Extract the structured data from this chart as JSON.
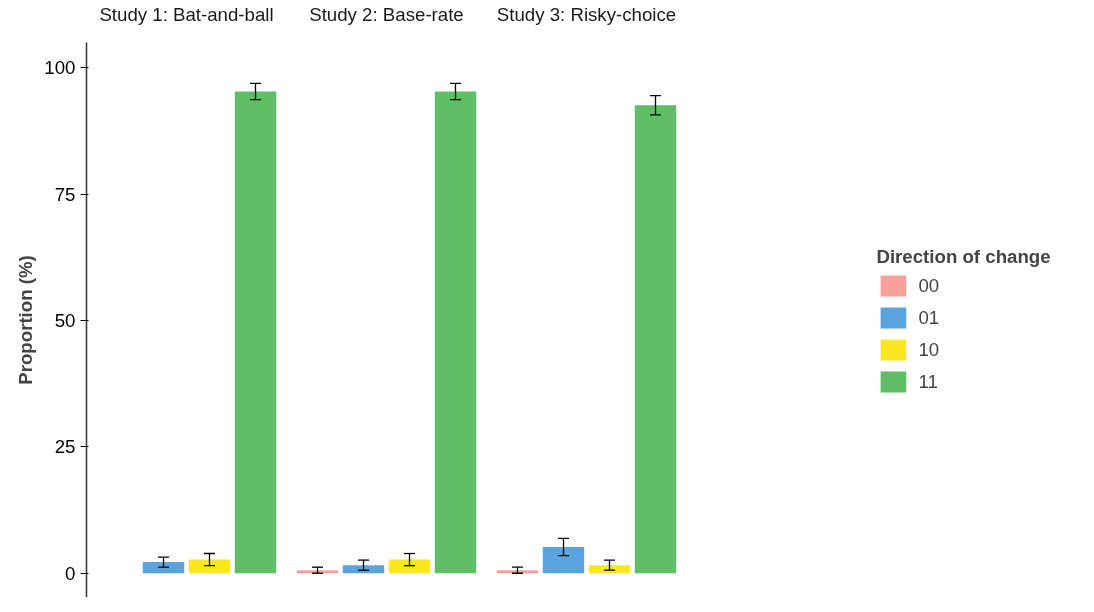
{
  "chart_data": {
    "type": "bar",
    "ylabel": "Proportion (%)",
    "categories": [
      "Study 1: Bat-and-ball",
      "Study 2: Base-rate",
      "Study 3: Risky-choice"
    ],
    "ylim": [
      -4.8,
      105
    ],
    "yticks": [
      0,
      25,
      50,
      75,
      100
    ],
    "grid": false,
    "legend": "right",
    "legend_title": "Direction of change",
    "series": [
      {
        "name": "00",
        "color": "#f8a19a",
        "values": [
          null,
          0.6,
          0.6
        ],
        "errors": [
          null,
          0.6,
          0.6
        ]
      },
      {
        "name": "01",
        "color": "#5ba3dc",
        "values": [
          2.2,
          1.6,
          5.2
        ],
        "errors": [
          1.0,
          1.0,
          1.7
        ]
      },
      {
        "name": "10",
        "color": "#fbe822",
        "values": [
          2.7,
          2.7,
          1.6
        ],
        "errors": [
          1.2,
          1.2,
          1.0
        ]
      },
      {
        "name": "11",
        "color": "#5fbe66",
        "values": [
          95.3,
          95.3,
          92.6
        ],
        "errors": [
          1.6,
          1.6,
          1.9
        ]
      }
    ]
  }
}
